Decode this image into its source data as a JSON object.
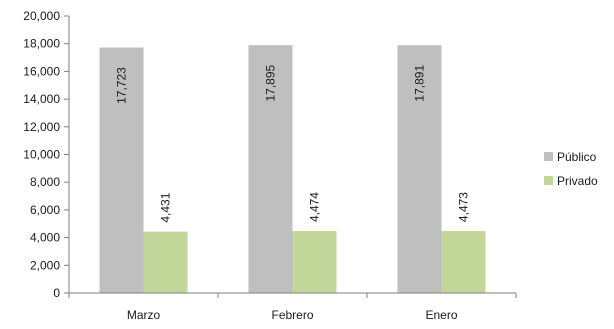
{
  "chart_data": {
    "type": "bar",
    "categories": [
      "Marzo",
      "Febrero",
      "Enero"
    ],
    "series": [
      {
        "name": "Público",
        "values": [
          17723,
          17895,
          17891
        ],
        "labels": [
          "17,723",
          "17,895",
          "17,891"
        ],
        "color": "#bfbfbf"
      },
      {
        "name": "Privado",
        "values": [
          4431,
          4474,
          4473
        ],
        "labels": [
          "4,431",
          "4,474",
          "4,473"
        ],
        "color": "#c4d79b"
      }
    ],
    "title": "",
    "xlabel": "",
    "ylabel": "",
    "ylim": [
      0,
      20000
    ],
    "yticks": [
      0,
      2000,
      4000,
      6000,
      8000,
      10000,
      12000,
      14000,
      16000,
      18000,
      20000
    ],
    "ytick_labels": [
      "0",
      "2,000",
      "4,000",
      "6,000",
      "8,000",
      "10,000",
      "12,000",
      "14,000",
      "16,000",
      "18,000",
      "20,000"
    ],
    "grid": false,
    "legend_position": "right",
    "axis_color": "#7f7f7f"
  }
}
